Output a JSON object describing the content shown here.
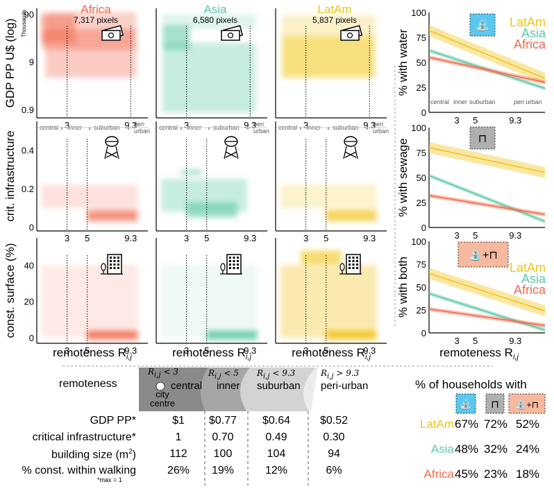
{
  "colors": {
    "africa": "#f26b4f",
    "asia": "#5ec8a6",
    "latam": "#f0c419",
    "gray": "#7b7b7b",
    "water_bg": "#5bc8f0",
    "sewage_bg": "#b0b0b0",
    "both_bg": "#f6b89e"
  },
  "icon_names": {
    "money": "banknote-icon",
    "tower": "water-tower-icon",
    "building": "building-icon",
    "tap": "tap-icon",
    "pipe": "pipe-icon"
  },
  "chart_data": [
    {
      "type": "heatmap",
      "grid": "density panels, 3 rows x 3 regions",
      "regions": [
        {
          "name": "Africa",
          "pixels": "7,317 pixels"
        },
        {
          "name": "Asia",
          "pixels": "6,580 pixels"
        },
        {
          "name": "LatAm",
          "pixels": "5,837 pixels"
        }
      ],
      "rows": [
        {
          "key": "gdp",
          "ylabel": "GDP PP U$ (log)",
          "unit": "Thousands",
          "yticks": [
            "90",
            "9",
            "0.9"
          ],
          "xticks": [
            "3",
            "9.3"
          ],
          "vlines": [
            3,
            9.3
          ]
        },
        {
          "key": "infra",
          "ylabel": "crit. infrastructure",
          "yticks": [
            "0.4",
            "0.2",
            "0"
          ],
          "xticks": [
            "3",
            "5",
            "9.3"
          ],
          "vlines": [
            3,
            5
          ]
        },
        {
          "key": "surface",
          "ylabel": "const. surface (%)",
          "yticks": [
            "40",
            "20",
            "0"
          ],
          "xticks": [
            "3",
            "5",
            "9.3"
          ],
          "vlines": [
            3,
            5
          ]
        }
      ],
      "xlabel": "remoteness R",
      "xlabel_sub": "i,j",
      "zone_labels": [
        "central",
        "inner",
        "suburban",
        "peri urban"
      ]
    },
    {
      "type": "line",
      "panels": [
        {
          "ylabel": "% with water",
          "series": [
            {
              "name": "LatAm",
              "start": 82,
              "end": 34
            },
            {
              "name": "Asia",
              "start": 62,
              "end": 24
            },
            {
              "name": "Africa",
              "start": 55,
              "end": 30
            }
          ],
          "legend": "top-right",
          "zones": true
        },
        {
          "ylabel": "% with sewage",
          "series": [
            {
              "name": "LatAm",
              "start": 80,
              "end": 55
            },
            {
              "name": "Asia",
              "start": 52,
              "end": 6
            },
            {
              "name": "Africa",
              "start": 32,
              "end": 13
            }
          ],
          "legend": "none",
          "zones": false
        },
        {
          "ylabel": "% with both",
          "series": [
            {
              "name": "LatAm",
              "start": 65,
              "end": 24
            },
            {
              "name": "Asia",
              "start": 43,
              "end": 3
            },
            {
              "name": "Africa",
              "start": 26,
              "end": 8
            }
          ],
          "legend": "right",
          "zones": false
        }
      ],
      "yticks": [
        "100",
        "75",
        "50",
        "25",
        "0"
      ],
      "ylim": [
        0,
        100
      ],
      "xticks": [
        "3",
        "5",
        "9.3"
      ],
      "xlabel": "remoteness R",
      "xlabel_sub": "i,j",
      "zone_labels": [
        "central",
        "inner",
        "suburban",
        "peri urban"
      ]
    },
    {
      "type": "table",
      "header": "remoteness",
      "zones": [
        {
          "cond": "R",
          "sub": "i,j",
          "rel": "< 3",
          "name": "central",
          "extra": "city centre"
        },
        {
          "cond": "R",
          "sub": "i,j",
          "rel": "< 5",
          "name": "inner"
        },
        {
          "cond": "R",
          "sub": "i,j",
          "rel": "< 9.3",
          "name": "suburban"
        },
        {
          "cond": "R",
          "sub": "i,j",
          "rel": "> 9.3",
          "name": "peri-urban"
        }
      ],
      "rows": [
        {
          "label": "GDP PP*",
          "values": [
            "$1",
            "$0.77",
            "$0.64",
            "$0.52"
          ]
        },
        {
          "label": "critical infrastructure*",
          "values": [
            "1",
            "0.70",
            "0.49",
            "0.30"
          ]
        },
        {
          "label": "building size (m",
          "sup": "2",
          "close": ")",
          "values": [
            "112",
            "100",
            "104",
            "94"
          ]
        },
        {
          "label": "% const. within walking",
          "values": [
            "26%",
            "19%",
            "12%",
            "6%"
          ]
        }
      ],
      "footnote": "*max = 1"
    },
    {
      "type": "table",
      "title": "% of households with",
      "columns": [
        "water",
        "sewage",
        "both"
      ],
      "rows": [
        {
          "region": "LatAm",
          "values": [
            "67%",
            "72%",
            "52%"
          ]
        },
        {
          "region": "Asia",
          "values": [
            "48%",
            "32%",
            "24%"
          ]
        },
        {
          "region": "Africa",
          "values": [
            "45%",
            "23%",
            "18%"
          ]
        }
      ]
    }
  ]
}
